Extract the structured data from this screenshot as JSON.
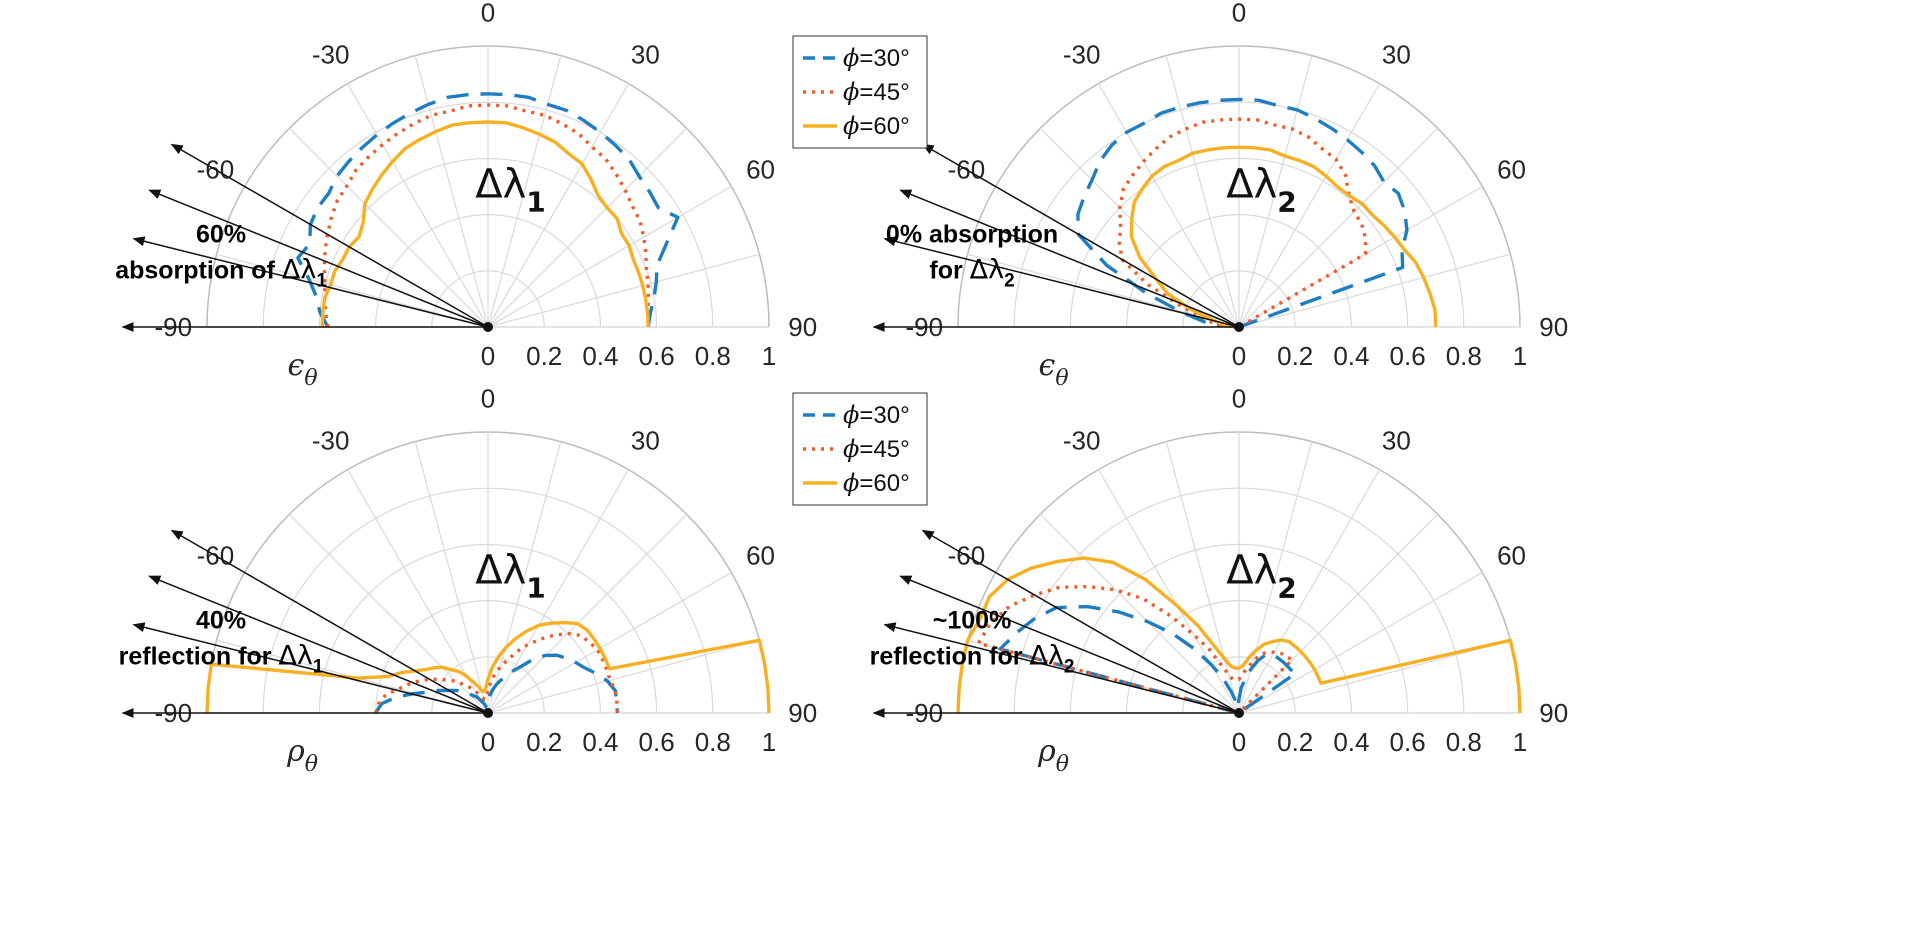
{
  "colors": {
    "phi30": "#1f7ec2",
    "phi45": "#f05a28",
    "phi60": "#f7b024",
    "arrow": "#111111",
    "grid": "#d9d9d9"
  },
  "legend": [
    {
      "symbol": "ϕ",
      "text": "=30°",
      "series": "phi30",
      "dash": "dashed"
    },
    {
      "symbol": "ϕ",
      "text": "=45°",
      "series": "phi45",
      "dash": "dotted"
    },
    {
      "symbol": "ϕ",
      "text": "=60°",
      "series": "phi60",
      "dash": "solid"
    }
  ],
  "angle_ticks": [
    "-90",
    "-60",
    "-30",
    "0",
    "30",
    "60",
    "90"
  ],
  "radial_ticks": [
    "0",
    "0.2",
    "0.4",
    "0.6",
    "0.8",
    "1"
  ],
  "panels": {
    "tl": {
      "title": "Δλ",
      "title_sub": "1",
      "rlabel": "ϵ",
      "rlabel_sub": "θ",
      "annotation": {
        "line1": "60%",
        "line2": "absorption of ",
        "sym": "Δλ",
        "sub": "1"
      }
    },
    "tr": {
      "title": "Δλ",
      "title_sub": "2",
      "rlabel": "ϵ",
      "rlabel_sub": "θ",
      "annotation": {
        "line1": "0% absorption",
        "line2": "for ",
        "sym": "Δλ",
        "sub": "2"
      }
    },
    "bl": {
      "title": "Δλ",
      "title_sub": "1",
      "rlabel": "ρ",
      "rlabel_sub": "θ",
      "annotation": {
        "line1": "40%",
        "line2": "reflection for ",
        "sym": "Δλ",
        "sub": "1"
      }
    },
    "br": {
      "title": "Δλ",
      "title_sub": "2",
      "rlabel": "ρ",
      "rlabel_sub": "θ",
      "annotation": {
        "line1": "~100%",
        "line2": "reflection for ",
        "sym": "Δλ",
        "sub": "2"
      }
    }
  },
  "chart_data": [
    {
      "type": "polar-line",
      "panel": "tl",
      "title": "Δλ1",
      "rlabel": "ϵθ",
      "theta_range": [
        -90,
        90
      ],
      "rlim": [
        0,
        1
      ],
      "theta_unit": "degrees",
      "series": [
        {
          "name": "ϕ=30°",
          "theta": [
            -90,
            -85,
            -80,
            -75,
            -70,
            -65,
            -60,
            -55,
            -50,
            -45,
            -40,
            -35,
            -30,
            -25,
            -20,
            -15,
            -10,
            -5,
            0,
            5,
            10,
            15,
            20,
            25,
            30,
            35,
            40,
            45,
            50,
            55,
            60,
            65,
            70,
            75,
            80,
            85,
            90
          ],
          "r": [
            0.57,
            0.6,
            0.62,
            0.66,
            0.72,
            0.7,
            0.73,
            0.74,
            0.74,
            0.76,
            0.77,
            0.78,
            0.79,
            0.8,
            0.81,
            0.82,
            0.83,
            0.83,
            0.83,
            0.83,
            0.83,
            0.82,
            0.82,
            0.81,
            0.8,
            0.79,
            0.78,
            0.76,
            0.75,
            0.74,
            0.78,
            0.7,
            0.64,
            0.62,
            0.6,
            0.58,
            0.57
          ]
        },
        {
          "name": "ϕ=45°",
          "theta": [
            -90,
            -85,
            -80,
            -75,
            -70,
            -65,
            -60,
            -55,
            -50,
            -45,
            -40,
            -35,
            -30,
            -25,
            -20,
            -15,
            -10,
            -5,
            0,
            5,
            10,
            15,
            20,
            25,
            30,
            35,
            40,
            45,
            50,
            55,
            60,
            65,
            70,
            75,
            80,
            85,
            90
          ],
          "r": [
            0.57,
            0.58,
            0.59,
            0.6,
            0.62,
            0.64,
            0.66,
            0.68,
            0.7,
            0.71,
            0.73,
            0.74,
            0.75,
            0.76,
            0.77,
            0.78,
            0.78,
            0.79,
            0.79,
            0.79,
            0.78,
            0.78,
            0.77,
            0.76,
            0.74,
            0.73,
            0.71,
            0.69,
            0.67,
            0.66,
            0.64,
            0.62,
            0.6,
            0.59,
            0.58,
            0.57,
            0.57
          ]
        },
        {
          "name": "ϕ=60°",
          "theta": [
            -90,
            -85,
            -80,
            -75,
            -70,
            -65,
            -60,
            -55,
            -50,
            -45,
            -40,
            -35,
            -30,
            -25,
            -20,
            -15,
            -10,
            -5,
            0,
            5,
            10,
            15,
            20,
            25,
            30,
            35,
            40,
            45,
            50,
            55,
            60,
            65,
            70,
            75,
            80,
            85,
            90
          ],
          "r": [
            0.59,
            0.59,
            0.59,
            0.58,
            0.58,
            0.57,
            0.57,
            0.56,
            0.58,
            0.62,
            0.64,
            0.66,
            0.68,
            0.7,
            0.71,
            0.72,
            0.73,
            0.73,
            0.73,
            0.73,
            0.72,
            0.71,
            0.7,
            0.68,
            0.67,
            0.64,
            0.61,
            0.6,
            0.6,
            0.58,
            0.58,
            0.57,
            0.57,
            0.57,
            0.57,
            0.57,
            0.57
          ]
        }
      ]
    },
    {
      "type": "polar-line",
      "panel": "tr",
      "title": "Δλ2",
      "rlabel": "ϵθ",
      "theta_range": [
        -90,
        90
      ],
      "rlim": [
        0,
        1
      ],
      "theta_unit": "degrees",
      "series": [
        {
          "name": "ϕ=30°",
          "theta": [
            -90,
            -85,
            -80,
            -75,
            -70,
            -65,
            -60,
            -55,
            -50,
            -45,
            -40,
            -35,
            -30,
            -25,
            -20,
            -15,
            -10,
            -5,
            0,
            5,
            10,
            15,
            20,
            25,
            30,
            35,
            40,
            45,
            50,
            55,
            60,
            65,
            70,
            75,
            80,
            85,
            90
          ],
          "r": [
            0.0,
            0.1,
            0.14,
            0.22,
            0.35,
            0.52,
            0.66,
            0.7,
            0.72,
            0.74,
            0.77,
            0.79,
            0.8,
            0.8,
            0.81,
            0.81,
            0.81,
            0.81,
            0.81,
            0.81,
            0.8,
            0.8,
            0.79,
            0.78,
            0.77,
            0.76,
            0.75,
            0.73,
            0.74,
            0.72,
            0.69,
            0.64,
            0.62,
            0.0,
            0.0,
            0.0,
            0.0
          ]
        },
        {
          "name": "ϕ=45°",
          "theta": [
            -90,
            -85,
            -80,
            -75,
            -70,
            -65,
            -60,
            -55,
            -50,
            -45,
            -40,
            -35,
            -30,
            -25,
            -20,
            -15,
            -10,
            -5,
            0,
            5,
            10,
            15,
            20,
            25,
            30,
            35,
            40,
            45,
            50,
            55,
            60,
            65,
            70,
            75,
            80,
            85,
            90
          ],
          "r": [
            0.0,
            0.06,
            0.1,
            0.15,
            0.22,
            0.36,
            0.48,
            0.52,
            0.55,
            0.6,
            0.64,
            0.66,
            0.68,
            0.7,
            0.72,
            0.73,
            0.74,
            0.74,
            0.74,
            0.74,
            0.73,
            0.73,
            0.72,
            0.7,
            0.69,
            0.66,
            0.61,
            0.58,
            0.57,
            0.55,
            0.52,
            0.0,
            0.0,
            0.0,
            0.0,
            0.0,
            0.0
          ]
        },
        {
          "name": "ϕ=60°",
          "theta": [
            -90,
            -85,
            -80,
            -75,
            -70,
            -65,
            -60,
            -55,
            -50,
            -45,
            -40,
            -35,
            -30,
            -25,
            -20,
            -15,
            -10,
            -5,
            0,
            5,
            10,
            15,
            20,
            25,
            30,
            35,
            40,
            45,
            50,
            55,
            60,
            65,
            70,
            75,
            80,
            85,
            90
          ],
          "r": [
            0.0,
            0.04,
            0.06,
            0.1,
            0.18,
            0.28,
            0.34,
            0.43,
            0.5,
            0.54,
            0.58,
            0.6,
            0.62,
            0.63,
            0.63,
            0.64,
            0.64,
            0.64,
            0.64,
            0.64,
            0.64,
            0.63,
            0.63,
            0.63,
            0.62,
            0.61,
            0.61,
            0.62,
            0.62,
            0.63,
            0.64,
            0.65,
            0.67,
            0.68,
            0.69,
            0.7,
            0.7
          ]
        }
      ]
    },
    {
      "type": "polar-line",
      "panel": "bl",
      "title": "Δλ1",
      "rlabel": "ρθ",
      "theta_range": [
        -90,
        90
      ],
      "rlim": [
        0,
        1
      ],
      "theta_unit": "degrees",
      "series": [
        {
          "name": "ϕ=30°",
          "theta": [
            -90,
            -85,
            -80,
            -75,
            -70,
            -65,
            -60,
            -55,
            -50,
            -45,
            -40,
            -35,
            -30,
            -25,
            -20,
            -15,
            -10,
            -5,
            0,
            5,
            10,
            15,
            20,
            25,
            30,
            35,
            40,
            45,
            50,
            55,
            60,
            65,
            70,
            75,
            80,
            85,
            90
          ],
          "r": [
            0.4,
            0.38,
            0.33,
            0.27,
            0.22,
            0.19,
            0.16,
            0.14,
            0.12,
            0.1,
            0.08,
            0.07,
            0.05,
            0.04,
            0.03,
            0.02,
            0.02,
            0.03,
            0.04,
            0.06,
            0.08,
            0.1,
            0.12,
            0.14,
            0.17,
            0.2,
            0.25,
            0.29,
            0.32,
            0.34,
            0.36,
            0.38,
            0.41,
            0.44,
            0.46,
            0.46,
            0.46
          ]
        },
        {
          "name": "ϕ=45°",
          "theta": [
            -90,
            -85,
            -80,
            -75,
            -70,
            -65,
            -60,
            -55,
            -50,
            -45,
            -40,
            -35,
            -30,
            -25,
            -20,
            -15,
            -10,
            -5,
            0,
            5,
            10,
            15,
            20,
            25,
            30,
            35,
            40,
            45,
            50,
            55,
            60,
            65,
            70,
            75,
            80,
            85,
            90
          ],
          "r": [
            0.4,
            0.39,
            0.37,
            0.33,
            0.3,
            0.27,
            0.24,
            0.21,
            0.18,
            0.16,
            0.13,
            0.11,
            0.09,
            0.07,
            0.06,
            0.05,
            0.05,
            0.06,
            0.08,
            0.11,
            0.14,
            0.17,
            0.2,
            0.24,
            0.28,
            0.32,
            0.36,
            0.4,
            0.43,
            0.44,
            0.45,
            0.45,
            0.45,
            0.45,
            0.46,
            0.46,
            0.46
          ]
        },
        {
          "name": "ϕ=60°",
          "theta": [
            -90,
            -85,
            -80,
            -75,
            -70,
            -65,
            -60,
            -55,
            -50,
            -45,
            -40,
            -35,
            -30,
            -25,
            -20,
            -15,
            -10,
            -5,
            0,
            5,
            10,
            15,
            20,
            25,
            30,
            35,
            40,
            45,
            50,
            55,
            60,
            65,
            70,
            75,
            80,
            85,
            90
          ],
          "r": [
            1.0,
            1.0,
            1.0,
            0.48,
            0.38,
            0.34,
            0.3,
            0.27,
            0.25,
            0.23,
            0.2,
            0.18,
            0.15,
            0.12,
            0.1,
            0.08,
            0.08,
            0.09,
            0.12,
            0.16,
            0.2,
            0.24,
            0.28,
            0.32,
            0.36,
            0.39,
            0.42,
            0.45,
            0.46,
            0.46,
            0.46,
            0.46,
            0.46,
            1.0,
            1.0,
            1.0,
            1.0
          ]
        }
      ]
    },
    {
      "type": "polar-line",
      "panel": "br",
      "title": "Δλ2",
      "rlabel": "ρθ",
      "theta_range": [
        -90,
        90
      ],
      "rlim": [
        0,
        1
      ],
      "theta_unit": "degrees",
      "series": [
        {
          "name": "ϕ=30°",
          "theta": [
            -90,
            -85,
            -80,
            -75,
            -70,
            -65,
            -60,
            -55,
            -50,
            -45,
            -40,
            -35,
            -30,
            -25,
            -20,
            -15,
            -10,
            -5,
            0,
            5,
            10,
            15,
            20,
            25,
            30,
            35,
            40,
            45,
            50,
            55,
            60,
            65,
            70,
            75,
            80,
            85,
            90
          ],
          "r": [
            0.0,
            0.0,
            0.0,
            0.88,
            0.84,
            0.8,
            0.75,
            0.66,
            0.56,
            0.46,
            0.37,
            0.28,
            0.2,
            0.14,
            0.08,
            0.04,
            0.02,
            0.03,
            0.05,
            0.09,
            0.12,
            0.16,
            0.2,
            0.23,
            0.24,
            0.24,
            0.24,
            0.24,
            0.24,
            0.25,
            0.0,
            0.0,
            0.0,
            0.0,
            0.0,
            0.0,
            0.0
          ]
        },
        {
          "name": "ϕ=45°",
          "theta": [
            -90,
            -85,
            -80,
            -75,
            -70,
            -65,
            -60,
            -55,
            -50,
            -45,
            -40,
            -35,
            -30,
            -25,
            -20,
            -15,
            -10,
            -5,
            0,
            5,
            10,
            15,
            20,
            25,
            30,
            35,
            40,
            45,
            50,
            55,
            60,
            65,
            70,
            75,
            80,
            85,
            90
          ],
          "r": [
            0.0,
            0.0,
            0.0,
            0.96,
            0.94,
            0.9,
            0.84,
            0.78,
            0.7,
            0.62,
            0.53,
            0.42,
            0.32,
            0.25,
            0.18,
            0.14,
            0.12,
            0.12,
            0.12,
            0.14,
            0.16,
            0.19,
            0.22,
            0.24,
            0.25,
            0.26,
            0.26,
            0.27,
            0.0,
            0.0,
            0.0,
            0.0,
            0.0,
            0.0,
            0.0,
            0.0,
            0.0
          ]
        },
        {
          "name": "ϕ=60°",
          "theta": [
            -90,
            -85,
            -80,
            -75,
            -70,
            -65,
            -60,
            -55,
            -50,
            -45,
            -40,
            -35,
            -30,
            -25,
            -20,
            -15,
            -10,
            -5,
            0,
            5,
            10,
            15,
            20,
            25,
            30,
            35,
            40,
            45,
            50,
            55,
            60,
            65,
            70,
            75,
            80,
            85,
            90
          ],
          "r": [
            1.0,
            1.0,
            1.0,
            1.0,
            0.98,
            0.98,
            0.95,
            0.9,
            0.84,
            0.78,
            0.7,
            0.58,
            0.44,
            0.34,
            0.25,
            0.2,
            0.17,
            0.16,
            0.16,
            0.17,
            0.2,
            0.23,
            0.26,
            0.28,
            0.3,
            0.31,
            0.31,
            0.31,
            0.31,
            0.31,
            0.31,
            0.31,
            0.31,
            1.0,
            1.0,
            1.0,
            1.0
          ]
        }
      ]
    }
  ]
}
